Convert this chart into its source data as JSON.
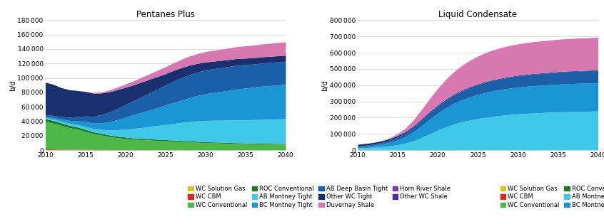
{
  "years": [
    2010,
    2011,
    2012,
    2013,
    2014,
    2015,
    2016,
    2017,
    2018,
    2019,
    2020,
    2021,
    2022,
    2023,
    2024,
    2025,
    2026,
    2027,
    2028,
    2029,
    2030,
    2031,
    2032,
    2033,
    2034,
    2035,
    2036,
    2037,
    2038,
    2039,
    2040
  ],
  "pentanes": {
    "WC Solution Gas": [
      300,
      280,
      260,
      240,
      220,
      200,
      190,
      180,
      170,
      160,
      150,
      140,
      130,
      120,
      110,
      100,
      95,
      90,
      85,
      80,
      75,
      70,
      68,
      65,
      62,
      60,
      58,
      55,
      53,
      51,
      50
    ],
    "WC CBM": [
      1200,
      1000,
      900,
      800,
      700,
      600,
      500,
      450,
      400,
      350,
      300,
      270,
      250,
      230,
      210,
      190,
      175,
      160,
      150,
      140,
      130,
      120,
      110,
      105,
      100,
      95,
      90,
      85,
      80,
      75,
      70
    ],
    "WC Conventional": [
      38000,
      36000,
      33000,
      30000,
      28000,
      25000,
      22000,
      20000,
      18000,
      16500,
      15500,
      14500,
      14000,
      13500,
      13000,
      12500,
      12000,
      11500,
      11000,
      10500,
      10000,
      9700,
      9400,
      9100,
      8800,
      8600,
      8400,
      8200,
      8100,
      8000,
      7900
    ],
    "ROC Conventional": [
      4000,
      3700,
      3400,
      3200,
      3000,
      2800,
      2600,
      2400,
      2200,
      2100,
      2000,
      1900,
      1800,
      1700,
      1600,
      1550,
      1500,
      1450,
      1400,
      1350,
      1300,
      1260,
      1220,
      1180,
      1150,
      1100,
      1070,
      1040,
      1020,
      1000,
      980
    ],
    "AB Montney Tight": [
      1500,
      2000,
      2500,
      3000,
      3500,
      4000,
      4500,
      5500,
      7000,
      9000,
      11000,
      13000,
      15000,
      17000,
      19000,
      21000,
      23000,
      25000,
      27000,
      28500,
      29500,
      30000,
      30500,
      31000,
      31500,
      32000,
      32500,
      33000,
      33500,
      34000,
      34500
    ],
    "BC Montney Tight": [
      1500,
      2000,
      2800,
      3800,
      5000,
      6500,
      7500,
      9000,
      11500,
      14000,
      16500,
      19000,
      21000,
      23000,
      25000,
      27000,
      29000,
      31000,
      33000,
      35000,
      37000,
      38500,
      40000,
      41500,
      43000,
      44000,
      45000,
      46000,
      46500,
      47000,
      47500
    ],
    "AB Deep Basin Tight": [
      2500,
      3000,
      3500,
      4500,
      6000,
      8000,
      9500,
      11500,
      13500,
      15500,
      17500,
      19500,
      21500,
      23500,
      25500,
      27500,
      29500,
      31000,
      32000,
      32500,
      33000,
      33000,
      33000,
      33000,
      33000,
      32500,
      32000,
      32000,
      32000,
      32000,
      32000
    ],
    "Other WC Tight": [
      45000,
      43000,
      40000,
      38000,
      36000,
      34000,
      32000,
      30000,
      28000,
      26000,
      24000,
      22000,
      20500,
      19000,
      17500,
      16000,
      15000,
      14000,
      13000,
      12000,
      11000,
      10500,
      10000,
      9600,
      9300,
      9000,
      8800,
      8700,
      8600,
      8500,
      8400
    ],
    "Duvernay Shale": [
      0,
      0,
      0,
      0,
      0,
      300,
      700,
      1500,
      2500,
      3500,
      4500,
      5500,
      6500,
      7500,
      8500,
      9500,
      10500,
      11500,
      12500,
      13500,
      14500,
      15000,
      15500,
      16000,
      16500,
      17000,
      17500,
      17800,
      18000,
      18200,
      18500
    ],
    "Horn River Shale": [
      0,
      0,
      0,
      0,
      0,
      0,
      0,
      0,
      0,
      0,
      0,
      0,
      0,
      0,
      0,
      0,
      0,
      0,
      0,
      0,
      0,
      0,
      0,
      0,
      0,
      0,
      0,
      0,
      0,
      0,
      0
    ],
    "Other WC Shale": [
      0,
      0,
      0,
      0,
      0,
      0,
      0,
      0,
      0,
      0,
      0,
      0,
      0,
      0,
      0,
      0,
      0,
      0,
      0,
      0,
      0,
      0,
      0,
      0,
      0,
      0,
      0,
      0,
      0,
      0,
      0
    ]
  },
  "condensate": {
    "WC Solution Gas": [
      200,
      200,
      200,
      200,
      200,
      200,
      200,
      200,
      200,
      200,
      200,
      200,
      200,
      200,
      200,
      200,
      200,
      200,
      200,
      200,
      200,
      200,
      200,
      200,
      200,
      200,
      200,
      200,
      200,
      200,
      200
    ],
    "WC CBM": [
      300,
      270,
      240,
      220,
      200,
      180,
      160,
      140,
      130,
      120,
      110,
      100,
      95,
      90,
      85,
      80,
      75,
      70,
      65,
      62,
      58,
      55,
      52,
      50,
      48,
      45,
      43,
      41,
      39,
      37,
      35
    ],
    "WC Conventional": [
      2500,
      2300,
      2100,
      1950,
      1800,
      1650,
      1550,
      1450,
      1380,
      1310,
      1250,
      1190,
      1140,
      1100,
      1060,
      1020,
      980,
      950,
      920,
      890,
      860,
      840,
      820,
      800,
      780,
      760,
      745,
      730,
      715,
      700,
      690
    ],
    "ROC Conventional": [
      1200,
      1120,
      1040,
      980,
      920,
      860,
      820,
      780,
      740,
      700,
      670,
      640,
      620,
      600,
      580,
      560,
      545,
      530,
      515,
      500,
      490,
      478,
      466,
      454,
      443,
      432,
      422,
      412,
      403,
      395,
      386
    ],
    "AB Montney Tight": [
      8000,
      11000,
      14000,
      18000,
      23000,
      30000,
      40000,
      55000,
      75000,
      98000,
      120000,
      140000,
      158000,
      172000,
      183000,
      192000,
      200000,
      207000,
      212000,
      217000,
      221000,
      224000,
      227000,
      229000,
      231000,
      233000,
      235000,
      236000,
      237000,
      238000,
      239000
    ],
    "BC Montney Tight": [
      7000,
      9000,
      12000,
      16000,
      22000,
      30000,
      40000,
      55000,
      73000,
      90000,
      105000,
      117000,
      127000,
      135000,
      142000,
      148000,
      153000,
      157000,
      160000,
      163000,
      165000,
      167000,
      168000,
      169000,
      170000,
      171000,
      172000,
      172500,
      173000,
      173500,
      174000
    ],
    "AB Deep Basin Tight": [
      4000,
      5500,
      7000,
      9500,
      13000,
      18000,
      23000,
      29000,
      35000,
      40000,
      44000,
      48000,
      51000,
      54000,
      57000,
      60000,
      62000,
      64000,
      66000,
      67500,
      69000,
      70000,
      71000,
      72000,
      73000,
      74000,
      74500,
      75000,
      75500,
      76000,
      76500
    ],
    "Other WC Tight": [
      12000,
      11000,
      10500,
      10000,
      9500,
      9000,
      8500,
      8000,
      7500,
      7000,
      6500,
      6100,
      5800,
      5500,
      5200,
      4900,
      4700,
      4500,
      4300,
      4100,
      3900,
      3750,
      3600,
      3500,
      3400,
      3300,
      3200,
      3100,
      3050,
      3000,
      2950
    ],
    "Duvernay Shale": [
      0,
      0,
      500,
      2000,
      5000,
      12000,
      22000,
      38000,
      58000,
      80000,
      102000,
      122000,
      138000,
      152000,
      163000,
      172000,
      179000,
      184000,
      188000,
      191000,
      193000,
      194500,
      196000,
      197000,
      198000,
      199000,
      199500,
      200000,
      200000,
      200000,
      200000
    ],
    "Horn River Shale": [
      0,
      0,
      0,
      0,
      0,
      0,
      0,
      0,
      0,
      0,
      0,
      0,
      0,
      0,
      0,
      0,
      0,
      0,
      0,
      0,
      0,
      0,
      0,
      0,
      0,
      0,
      0,
      0,
      0,
      0,
      0
    ],
    "Other WC Shale": [
      0,
      0,
      0,
      0,
      0,
      0,
      0,
      0,
      0,
      0,
      0,
      0,
      0,
      0,
      0,
      0,
      0,
      0,
      0,
      0,
      0,
      0,
      0,
      0,
      0,
      0,
      0,
      0,
      0,
      0,
      0
    ]
  },
  "series_order": [
    "WC Solution Gas",
    "WC CBM",
    "WC Conventional",
    "ROC Conventional",
    "AB Montney Tight",
    "BC Montney Tight",
    "AB Deep Basin Tight",
    "Other WC Tight",
    "Duvernay Shale",
    "Horn River Shale",
    "Other WC Shale"
  ],
  "colors": {
    "WC Solution Gas": "#d4c623",
    "WC CBM": "#e8261a",
    "WC Conventional": "#4db848",
    "ROC Conventional": "#1e7a1e",
    "AB Montney Tight": "#40c8e8",
    "BC Montney Tight": "#1a96d4",
    "AB Deep Basin Tight": "#1a5fa8",
    "Other WC Tight": "#1a2f6e",
    "Duvernay Shale": "#d878b0",
    "Horn River Shale": "#7840a0",
    "Other WC Shale": "#5828a0"
  },
  "title1": "Pentanes Plus",
  "title2": "Liquid Condensate",
  "ylabel": "b/d",
  "ylim1": [
    0,
    180000
  ],
  "ylim2": [
    0,
    800000
  ],
  "yticks1": [
    0,
    20000,
    40000,
    60000,
    80000,
    100000,
    120000,
    140000,
    160000,
    180000
  ],
  "yticks2": [
    0,
    100000,
    200000,
    300000,
    400000,
    500000,
    600000,
    700000,
    800000
  ],
  "xlim": [
    2010,
    2040
  ],
  "xticks": [
    2010,
    2015,
    2020,
    2025,
    2030,
    2035,
    2040
  ],
  "background_color": "#ffffff",
  "grid_color": "#cccccc",
  "title_fontsize": 8.5,
  "legend_fontsize": 6.0,
  "tick_fontsize": 6.5,
  "ylabel_fontsize": 7
}
